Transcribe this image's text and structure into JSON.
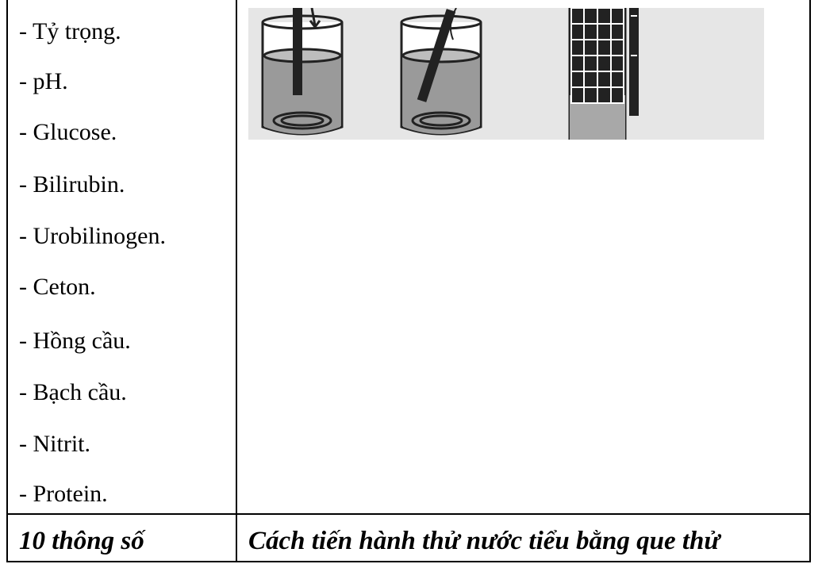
{
  "parameters": [
    "- Tỷ trọng.",
    "- pH.",
    "- Glucose.",
    "- Bilirubin.",
    "- Urobilinogen.",
    "- Ceton.",
    "- Hồng cầu.",
    "- Bạch cầu.",
    "- Nitrit.",
    "- Protein."
  ],
  "footer": {
    "left": "10 thông số",
    "right": "Cách tiến hành thử nước tiểu bằng que thử"
  }
}
